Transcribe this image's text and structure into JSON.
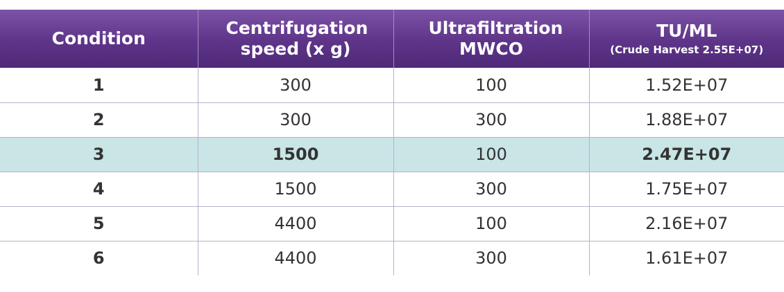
{
  "table": {
    "headers": [
      {
        "label": "Condition",
        "sub": ""
      },
      {
        "label": "Centrifugation speed (x g)",
        "sub": ""
      },
      {
        "label": "Ultrafiltration MWCO",
        "sub": ""
      },
      {
        "label": "TU/ML",
        "sub": "(Crude Harvest 2.55E+07)"
      }
    ],
    "rows": [
      {
        "condition": "1",
        "speed": "300",
        "mwco": "100",
        "tu": "1.52E+07"
      },
      {
        "condition": "2",
        "speed": "300",
        "mwco": "300",
        "tu": "1.88E+07"
      },
      {
        "condition": "3",
        "speed": "1500",
        "mwco": "100",
        "tu": "2.47E+07"
      },
      {
        "condition": "4",
        "speed": "1500",
        "mwco": "300",
        "tu": "1.75E+07"
      },
      {
        "condition": "5",
        "speed": "4400",
        "mwco": "100",
        "tu": "2.16E+07"
      },
      {
        "condition": "6",
        "speed": "4400",
        "mwco": "300",
        "tu": "1.61E+07"
      }
    ],
    "highlight_row_index": 2,
    "colors": {
      "header_purple": "#5e3489",
      "highlight_teal": "#c9e5e6",
      "grid_line": "#b9b0cc"
    }
  }
}
